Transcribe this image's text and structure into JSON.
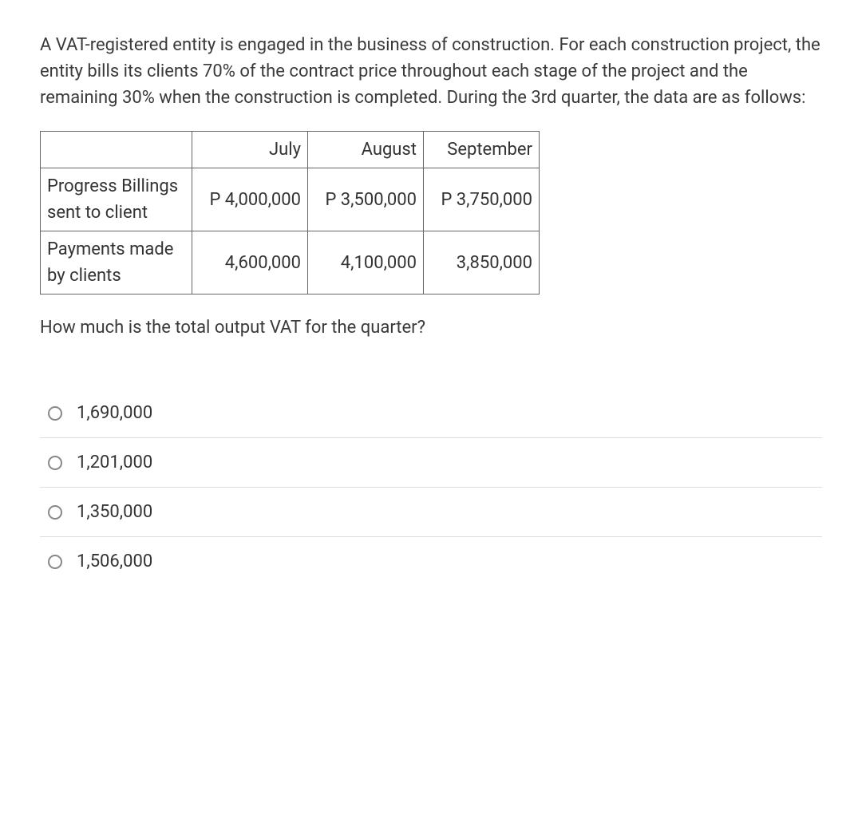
{
  "question": {
    "intro": "A VAT-registered entity is engaged in the business of construction. For each construction project, the entity bills its clients 70% of the contract price throughout each stage of the project and the remaining 30% when the construction is completed. During the 3rd quarter, the data are as follows:",
    "prompt": "How much is the total output VAT for the quarter?"
  },
  "table": {
    "columns": [
      "July",
      "August",
      "September"
    ],
    "rows": [
      {
        "header": "Progress Billings sent to client",
        "values": [
          "P 4,000,000",
          "P 3,500,000",
          "P 3,750,000"
        ]
      },
      {
        "header": "Payments made by clients",
        "values": [
          "4,600,000",
          "4,100,000",
          "3,850,000"
        ]
      }
    ],
    "border_color": "#666666",
    "text_color": "#333333",
    "font_size": 22
  },
  "options": [
    {
      "label": "1,690,000"
    },
    {
      "label": "1,201,000"
    },
    {
      "label": "1,350,000"
    },
    {
      "label": "1,506,000"
    }
  ],
  "styling": {
    "background_color": "#ffffff",
    "text_color": "#333333",
    "divider_color": "#dcdcdc",
    "radio_border_color": "#888888",
    "font_size": 22
  }
}
